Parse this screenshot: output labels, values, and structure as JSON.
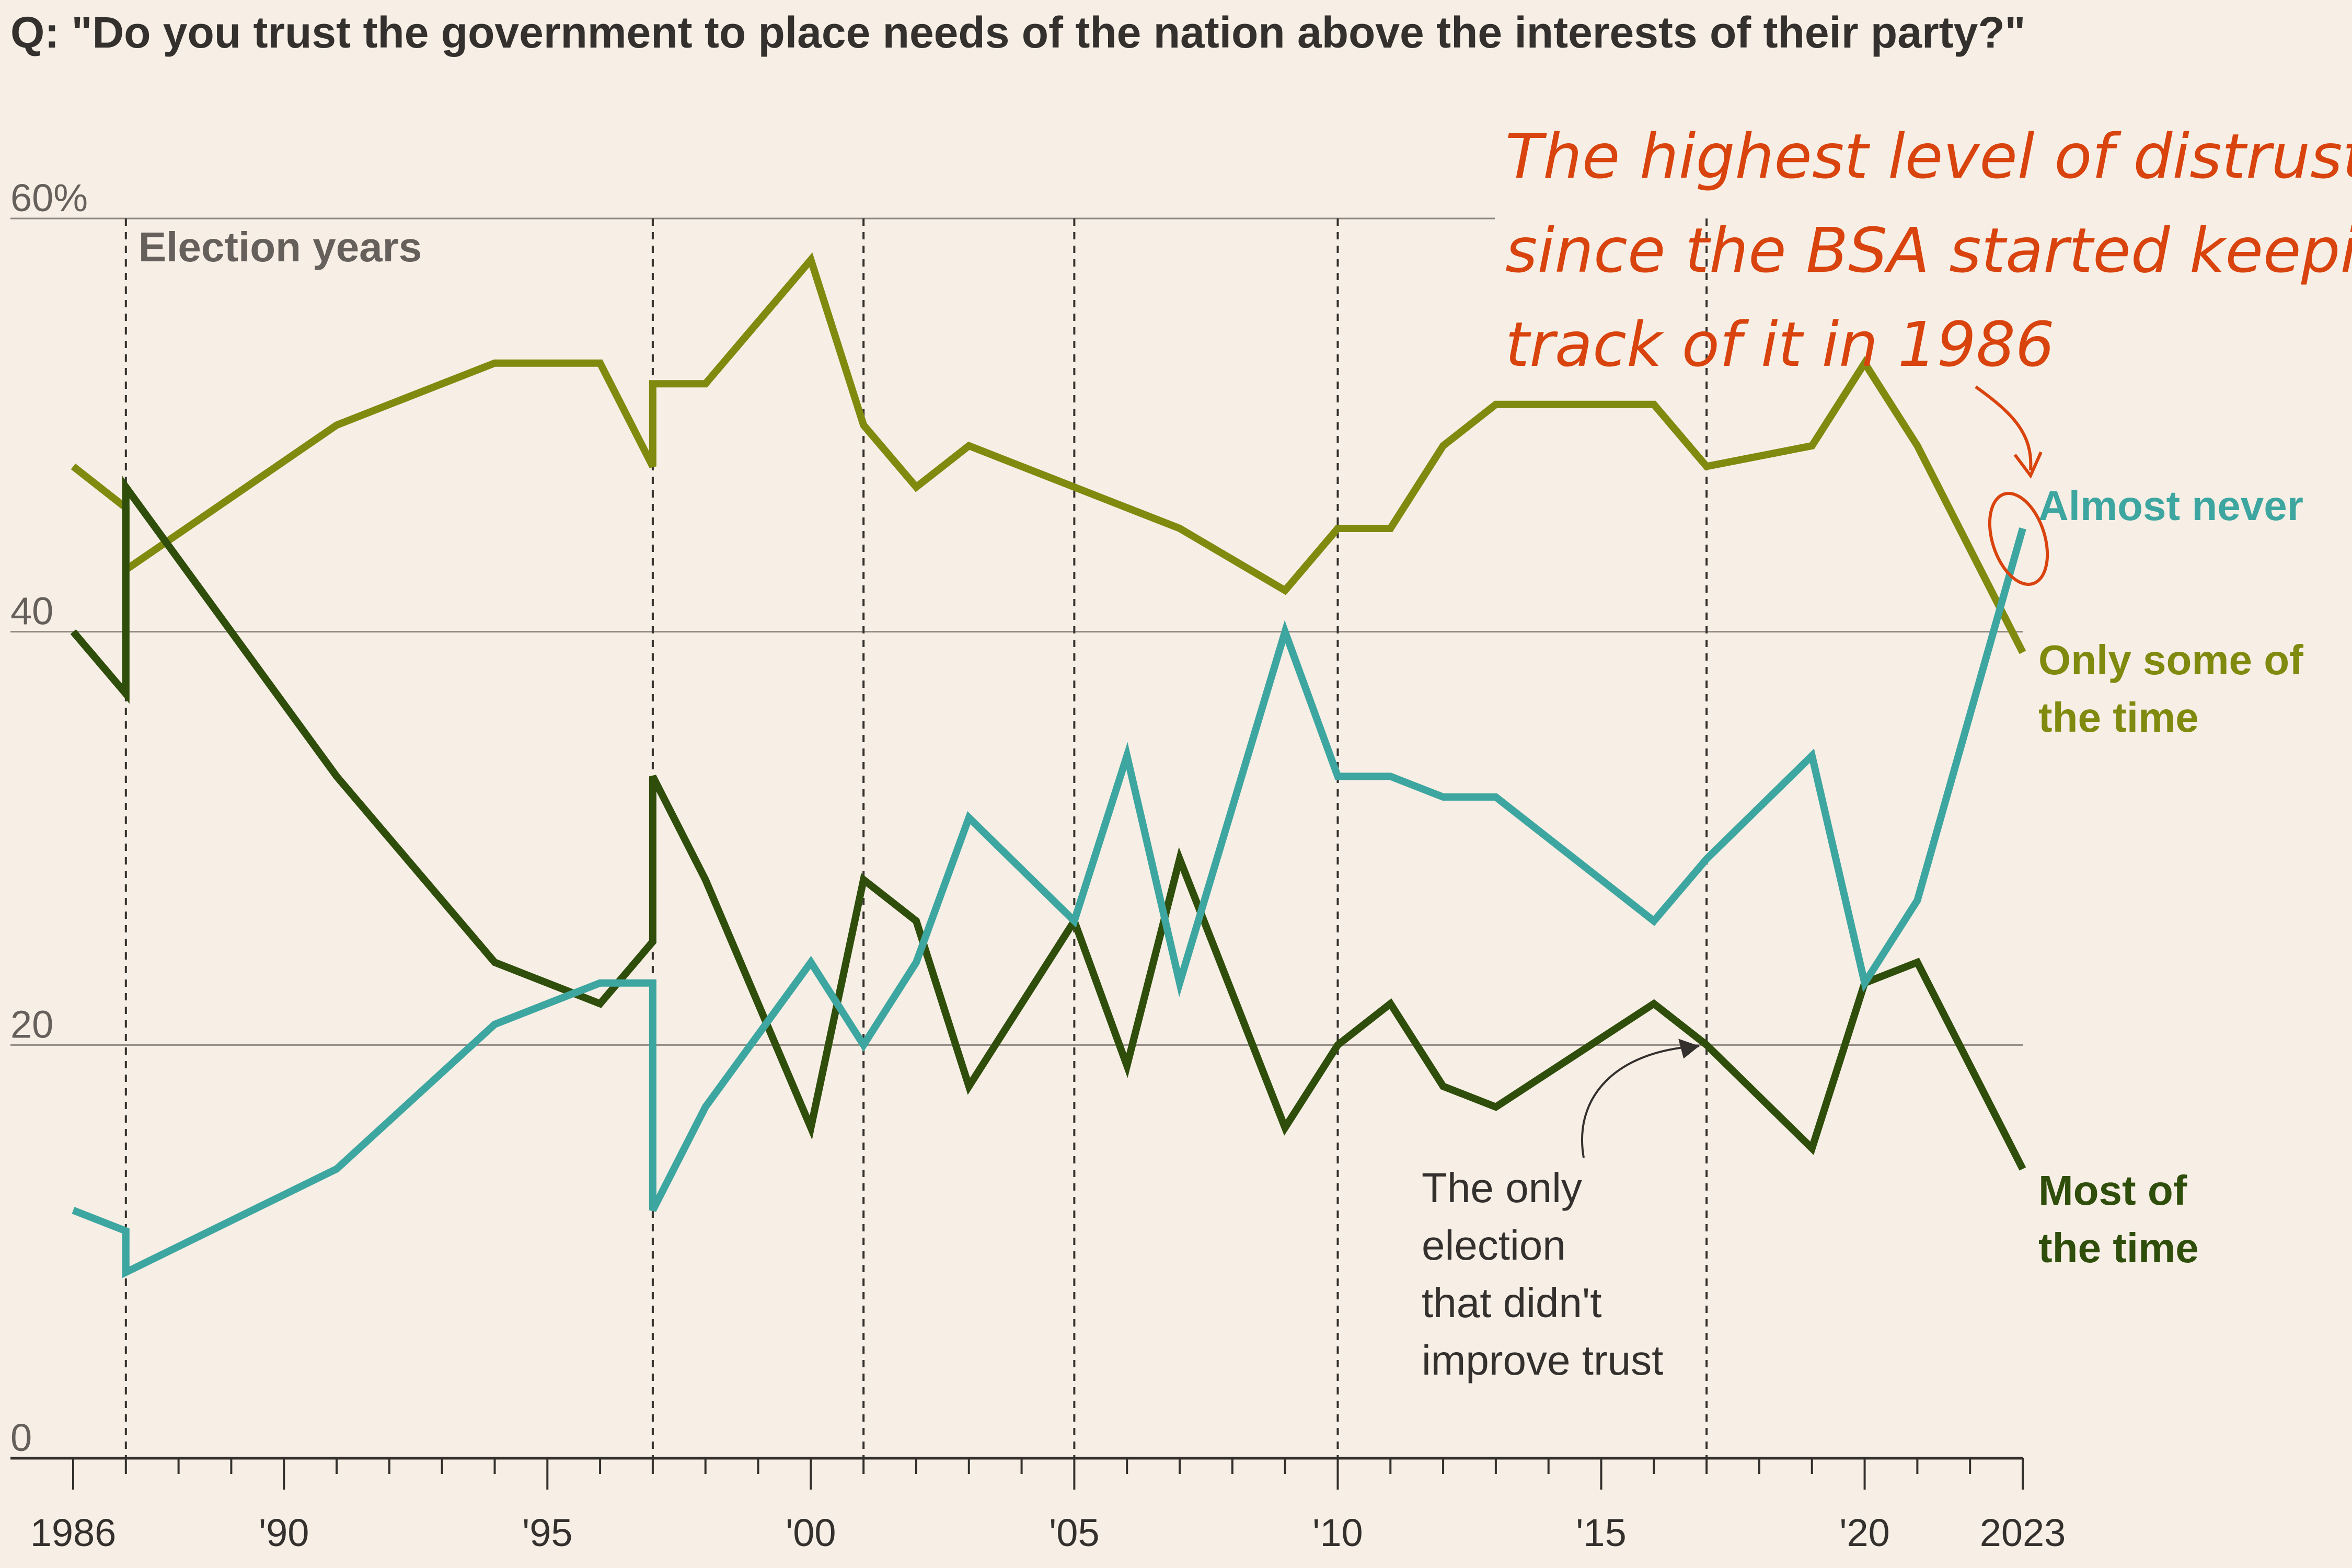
{
  "title": "Q: \"Do you trust the government to place needs of the nation above the interests of their party?\"",
  "chart_data": {
    "type": "line",
    "x": [
      1986,
      1987,
      1991,
      1994,
      1996,
      1997,
      1998,
      2000,
      2001,
      2002,
      2003,
      2005,
      2006,
      2007,
      2009,
      2010,
      2011,
      2012,
      2013,
      2016,
      2017,
      2019,
      2020,
      2021,
      2023
    ],
    "x_ticks": [
      "1986",
      "'90",
      "'95",
      "'00",
      "'05",
      "'10",
      "'15",
      "'20",
      "2023"
    ],
    "x_tick_years": [
      1986,
      1990,
      1995,
      2000,
      2005,
      2010,
      2015,
      2020,
      2023
    ],
    "xlim": [
      1986,
      2023
    ],
    "ylim": [
      0,
      60
    ],
    "y_ticks": [
      "60%",
      "40",
      "20",
      "0"
    ],
    "y_tick_values": [
      60,
      40,
      20,
      0
    ],
    "grid": true,
    "election_years": [
      1987,
      1997,
      2001,
      2005,
      2010,
      2017
    ],
    "election_label": "Election years",
    "series": [
      {
        "name": "Only some of the time",
        "color": "#7f8a0e",
        "points": [
          [
            1986,
            48
          ],
          [
            1987,
            46
          ],
          [
            1987,
            43
          ],
          [
            1991,
            50
          ],
          [
            1994,
            53
          ],
          [
            1996,
            53
          ],
          [
            1997,
            48
          ],
          [
            1997,
            52
          ],
          [
            1998,
            52
          ],
          [
            2000,
            58
          ],
          [
            2001,
            50
          ],
          [
            2002,
            47
          ],
          [
            2003,
            49
          ],
          [
            2007,
            45
          ],
          [
            2009,
            42
          ],
          [
            2010,
            45
          ],
          [
            2011,
            45
          ],
          [
            2012,
            49
          ],
          [
            2013,
            51
          ],
          [
            2016,
            51
          ],
          [
            2017,
            48
          ],
          [
            2019,
            49
          ],
          [
            2020,
            53
          ],
          [
            2021,
            49
          ],
          [
            2023,
            39
          ]
        ]
      },
      {
        "name": "Most of the time",
        "color": "#2f4e0b",
        "points": [
          [
            1986,
            40
          ],
          [
            1987,
            37
          ],
          [
            1987,
            47
          ],
          [
            1991,
            33
          ],
          [
            1994,
            24
          ],
          [
            1996,
            22
          ],
          [
            1997,
            25
          ],
          [
            1997,
            33
          ],
          [
            1998,
            28
          ],
          [
            2000,
            16
          ],
          [
            2001,
            28
          ],
          [
            2002,
            26
          ],
          [
            2003,
            18
          ],
          [
            2005,
            26
          ],
          [
            2006,
            19
          ],
          [
            2007,
            29
          ],
          [
            2009,
            16
          ],
          [
            2010,
            20
          ],
          [
            2011,
            22
          ],
          [
            2012,
            18
          ],
          [
            2013,
            17
          ],
          [
            2016,
            22
          ],
          [
            2017,
            20
          ],
          [
            2019,
            15
          ],
          [
            2020,
            23
          ],
          [
            2021,
            24
          ],
          [
            2023,
            14
          ]
        ]
      },
      {
        "name": "Almost never",
        "color": "#3ea6a0",
        "points": [
          [
            1986,
            12
          ],
          [
            1987,
            11
          ],
          [
            1987,
            9
          ],
          [
            1991,
            14
          ],
          [
            1994,
            21
          ],
          [
            1996,
            23
          ],
          [
            1997,
            23
          ],
          [
            1997,
            12
          ],
          [
            1998,
            17
          ],
          [
            2000,
            24
          ],
          [
            2001,
            20
          ],
          [
            2002,
            24
          ],
          [
            2003,
            31
          ],
          [
            2005,
            26
          ],
          [
            2006,
            34
          ],
          [
            2007,
            23
          ],
          [
            2009,
            40
          ],
          [
            2010,
            33
          ],
          [
            2011,
            33
          ],
          [
            2012,
            32
          ],
          [
            2013,
            32
          ],
          [
            2016,
            26
          ],
          [
            2017,
            29
          ],
          [
            2019,
            34
          ],
          [
            2020,
            23
          ],
          [
            2021,
            27
          ],
          [
            2023,
            45
          ]
        ]
      }
    ],
    "series_labels": [
      {
        "lines": [
          "Almost never"
        ],
        "color": "#3ea6a0"
      },
      {
        "lines": [
          "Only some of",
          "the time"
        ],
        "color": "#7f8a0e"
      },
      {
        "lines": [
          "Most of",
          "the time"
        ],
        "color": "#2f4e0b"
      }
    ],
    "annotations": [
      {
        "lines": [
          "The only",
          "election",
          "that didn't",
          "improve trust"
        ],
        "points_to": [
          2017,
          20
        ]
      },
      {
        "lines": [
          "The highest level of distrust",
          "since the BSA started keeping",
          "track of it in 1986"
        ],
        "points_to": [
          2023,
          45
        ],
        "style": "handwritten",
        "color": "#d9430d"
      }
    ]
  }
}
